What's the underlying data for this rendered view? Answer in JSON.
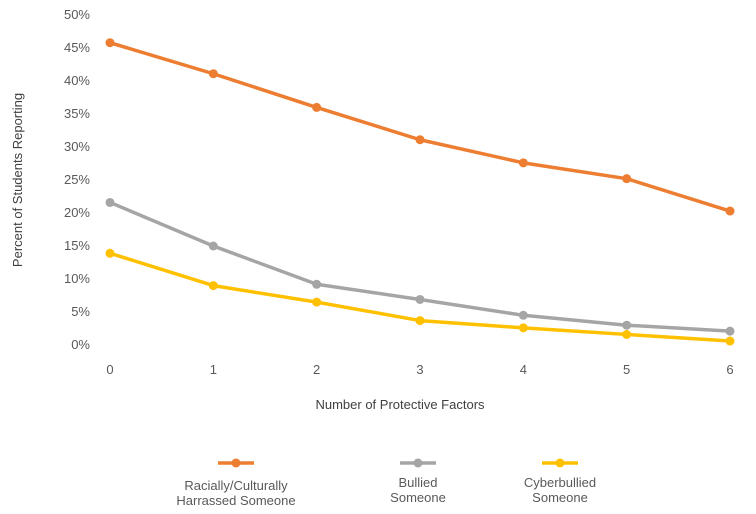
{
  "chart_data": {
    "type": "line",
    "title": "",
    "xlabel": "Number of Protective Factors",
    "ylabel": "Percent of Students Reporting",
    "x": [
      0,
      1,
      2,
      3,
      4,
      5,
      6
    ],
    "x_tick_labels": [
      "0",
      "1",
      "2",
      "3",
      "4",
      "5",
      "6"
    ],
    "y_tick_labels": [
      "0%",
      "5%",
      "10%",
      "15%",
      "20%",
      "25%",
      "30%",
      "35%",
      "40%",
      "45%",
      "50%"
    ],
    "ylim": [
      0,
      50
    ],
    "grid": false,
    "legend_position": "bottom",
    "series": [
      {
        "name": "Racially/Culturally Harrassed Someone",
        "legend_lines": [
          "Racially/Culturally",
          "Harrassed Someone"
        ],
        "color": "#ED7D31",
        "values": [
          45.8,
          41.1,
          36.0,
          31.1,
          27.6,
          25.2,
          20.3
        ]
      },
      {
        "name": "Bullied Someone",
        "legend_lines": [
          "Bullied",
          "Someone"
        ],
        "color": "#A5A5A5",
        "values": [
          21.6,
          15.0,
          9.2,
          6.9,
          4.5,
          3.0,
          2.1
        ]
      },
      {
        "name": "Cyberbullied Someone",
        "legend_lines": [
          "Cyberbullied",
          "Someone"
        ],
        "color": "#FFC000",
        "values": [
          13.9,
          9.0,
          6.5,
          3.7,
          2.6,
          1.6,
          0.6
        ]
      }
    ]
  }
}
